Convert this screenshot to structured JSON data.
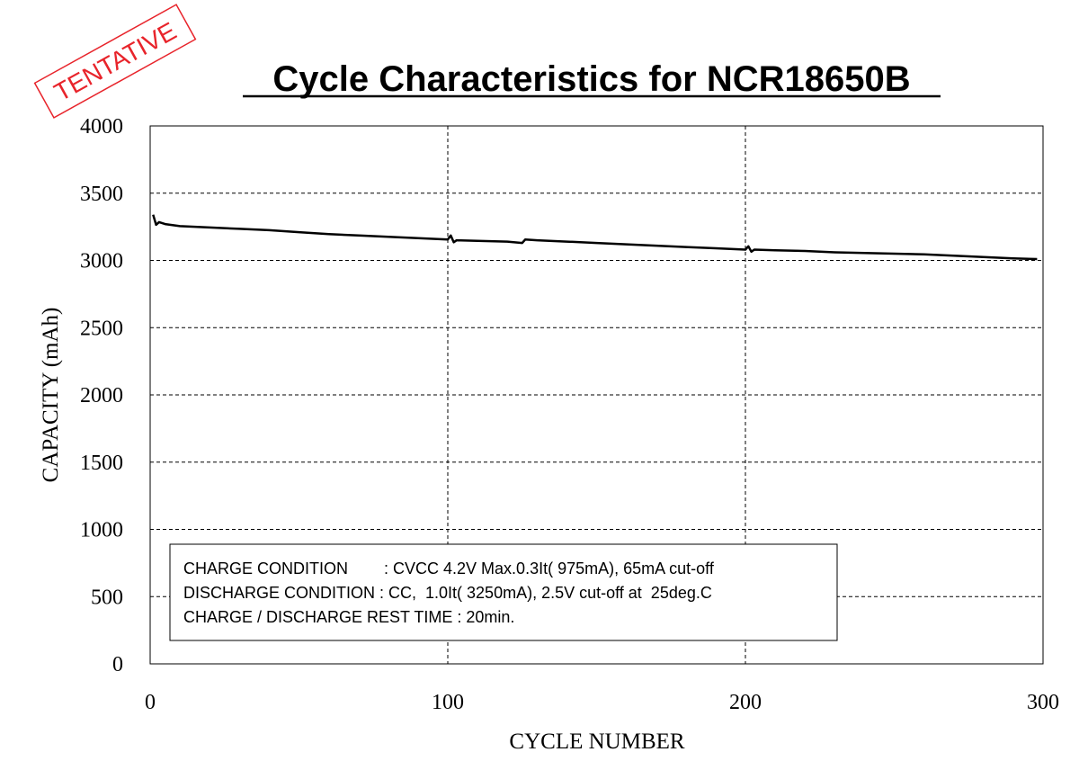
{
  "stamp": {
    "text": "TENTATIVE",
    "color": "#e8242b"
  },
  "chart_data": {
    "type": "line",
    "title": "Cycle Characteristics for NCR18650B",
    "xlabel": "CYCLE NUMBER",
    "ylabel": "CAPACITY  (mAh)",
    "xlim": [
      0,
      300
    ],
    "ylim": [
      0,
      4000
    ],
    "x_ticks": [
      0,
      100,
      200,
      300
    ],
    "y_ticks": [
      0,
      500,
      1000,
      1500,
      2000,
      2500,
      3000,
      3500,
      4000
    ],
    "grid": true,
    "grid_style": "dashed",
    "line_color": "#000000",
    "series": [
      {
        "x": [
          1,
          2,
          3,
          5,
          10,
          20,
          30,
          40,
          50,
          60,
          70,
          80,
          90,
          100,
          101,
          102,
          103,
          110,
          120,
          125,
          126,
          130,
          140,
          150,
          160,
          170,
          180,
          190,
          200,
          201,
          202,
          203,
          210,
          220,
          230,
          240,
          250,
          260,
          270,
          280,
          290,
          298
        ],
        "y": [
          3340,
          3265,
          3285,
          3270,
          3255,
          3245,
          3235,
          3225,
          3210,
          3195,
          3185,
          3175,
          3165,
          3155,
          3185,
          3135,
          3150,
          3145,
          3140,
          3130,
          3155,
          3150,
          3140,
          3130,
          3120,
          3110,
          3100,
          3090,
          3080,
          3105,
          3065,
          3080,
          3075,
          3070,
          3060,
          3055,
          3050,
          3045,
          3035,
          3025,
          3015,
          3010
        ]
      }
    ]
  },
  "conditions": {
    "line1": "CHARGE CONDITION        : CVCC 4.2V Max.0.3It( 975mA), 65mA cut-off",
    "line2": "DISCHARGE CONDITION : CC,  1.0It( 3250mA), 2.5V cut-off at  25deg.C",
    "line3": "CHARGE / DISCHARGE REST TIME : 20min."
  }
}
